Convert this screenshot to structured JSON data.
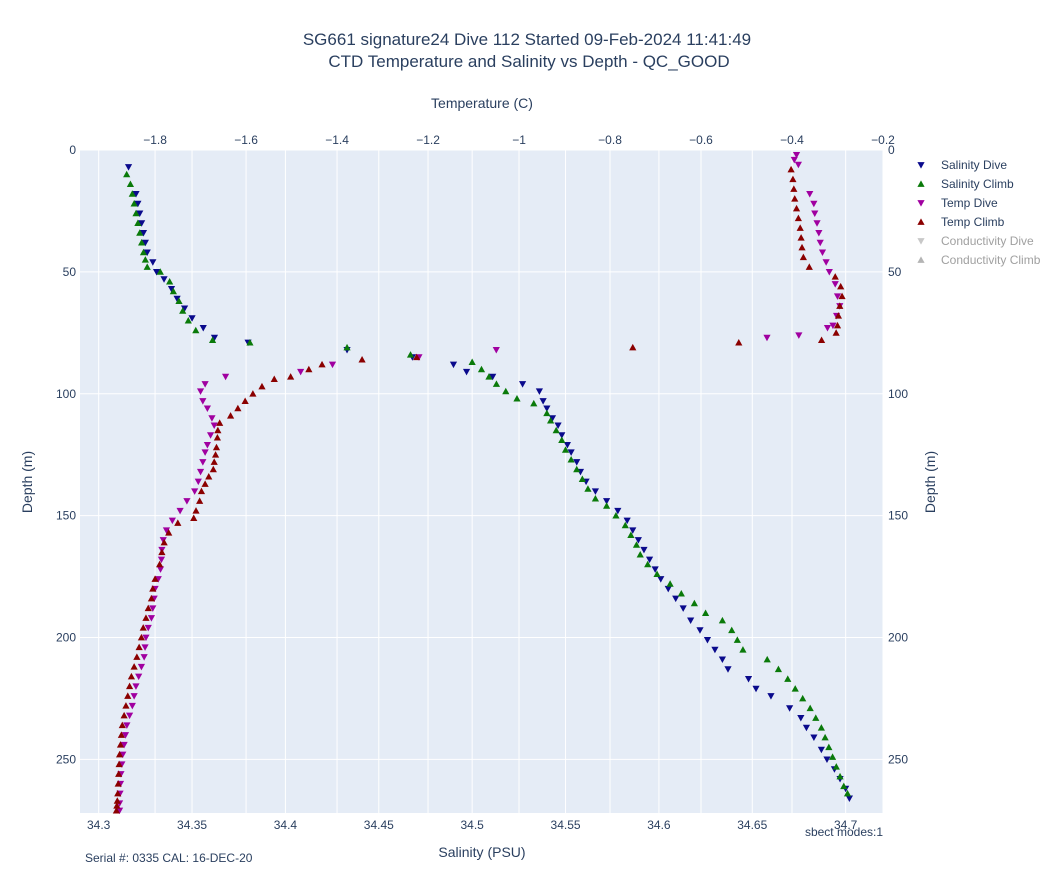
{
  "chart_data": {
    "type": "scatter",
    "title": "SG661 signature24 Dive 112 Started 09-Feb-2024 11:41:49",
    "subtitle": "CTD Temperature and Salinity vs Depth - QC_GOOD",
    "xlabel": "Salinity (PSU)",
    "x2label": "Temperature (C)",
    "ylabel": "Depth (m)",
    "y2label": "Depth (m)",
    "xlim": [
      34.29,
      34.72
    ],
    "x2lim": [
      -1.965,
      -0.2
    ],
    "ylim": [
      272,
      0
    ],
    "x_ticks": [
      "34.3",
      "34.35",
      "34.4",
      "34.45",
      "34.5",
      "34.55",
      "34.6",
      "34.65",
      "34.7"
    ],
    "x2_ticks": [
      "−1.8",
      "−1.6",
      "−1.4",
      "−1.2",
      "−1",
      "−0.8",
      "−0.6",
      "−0.4",
      "−0.2"
    ],
    "y_ticks": [
      "0",
      "50",
      "100",
      "150",
      "200",
      "250"
    ],
    "grid": true,
    "legend_position": "right",
    "annotation_left": "Serial #: 0335  CAL: 16-DEC-20",
    "annotation_right": "sbect modes:1",
    "series": [
      {
        "name": "Salinity Dive",
        "axis": "salinity",
        "marker": "down",
        "color": "#0a0a8c",
        "points": [
          [
            34.316,
            7
          ],
          [
            34.32,
            18
          ],
          [
            34.321,
            22
          ],
          [
            34.322,
            26
          ],
          [
            34.323,
            30
          ],
          [
            34.324,
            34
          ],
          [
            34.325,
            38
          ],
          [
            34.326,
            42
          ],
          [
            34.329,
            46
          ],
          [
            34.331,
            50
          ],
          [
            34.335,
            53
          ],
          [
            34.339,
            57
          ],
          [
            34.342,
            61
          ],
          [
            34.346,
            65
          ],
          [
            34.35,
            69
          ],
          [
            34.356,
            73
          ],
          [
            34.362,
            77
          ],
          [
            34.38,
            79
          ],
          [
            34.433,
            82
          ],
          [
            34.468,
            85
          ],
          [
            34.49,
            88
          ],
          [
            34.497,
            91
          ],
          [
            34.511,
            93
          ],
          [
            34.527,
            96
          ],
          [
            34.536,
            99
          ],
          [
            34.538,
            103
          ],
          [
            34.54,
            106
          ],
          [
            34.543,
            110
          ],
          [
            34.546,
            113
          ],
          [
            34.548,
            117
          ],
          [
            34.551,
            121
          ],
          [
            34.553,
            124
          ],
          [
            34.556,
            128
          ],
          [
            34.558,
            132
          ],
          [
            34.561,
            136
          ],
          [
            34.566,
            140
          ],
          [
            34.572,
            144
          ],
          [
            34.578,
            148
          ],
          [
            34.583,
            152
          ],
          [
            34.586,
            156
          ],
          [
            34.589,
            160
          ],
          [
            34.592,
            164
          ],
          [
            34.595,
            168
          ],
          [
            34.598,
            172
          ],
          [
            34.601,
            176
          ],
          [
            34.605,
            180
          ],
          [
            34.609,
            184
          ],
          [
            34.613,
            188
          ],
          [
            34.617,
            193
          ],
          [
            34.622,
            197
          ],
          [
            34.626,
            201
          ],
          [
            34.63,
            205
          ],
          [
            34.634,
            209
          ],
          [
            34.637,
            213
          ],
          [
            34.648,
            217
          ],
          [
            34.652,
            221
          ],
          [
            34.66,
            224
          ],
          [
            34.67,
            229
          ],
          [
            34.676,
            233
          ],
          [
            34.679,
            237
          ],
          [
            34.683,
            241
          ],
          [
            34.687,
            246
          ],
          [
            34.69,
            250
          ],
          [
            34.694,
            254
          ],
          [
            34.697,
            258
          ],
          [
            34.7,
            262
          ],
          [
            34.702,
            266
          ]
        ]
      },
      {
        "name": "Salinity Climb",
        "axis": "salinity",
        "marker": "up",
        "color": "#0a7a0a",
        "points": [
          [
            34.315,
            10
          ],
          [
            34.317,
            14
          ],
          [
            34.318,
            18
          ],
          [
            34.319,
            22
          ],
          [
            34.32,
            26
          ],
          [
            34.321,
            30
          ],
          [
            34.322,
            34
          ],
          [
            34.323,
            38
          ],
          [
            34.324,
            42
          ],
          [
            34.325,
            45
          ],
          [
            34.326,
            48
          ],
          [
            34.333,
            50
          ],
          [
            34.338,
            54
          ],
          [
            34.34,
            58
          ],
          [
            34.343,
            62
          ],
          [
            34.345,
            66
          ],
          [
            34.348,
            70
          ],
          [
            34.352,
            74
          ],
          [
            34.361,
            78
          ],
          [
            34.381,
            79
          ],
          [
            34.433,
            81
          ],
          [
            34.467,
            84
          ],
          [
            34.5,
            87
          ],
          [
            34.505,
            90
          ],
          [
            34.509,
            93
          ],
          [
            34.513,
            96
          ],
          [
            34.518,
            99
          ],
          [
            34.524,
            102
          ],
          [
            34.533,
            104
          ],
          [
            34.54,
            108
          ],
          [
            34.542,
            111
          ],
          [
            34.545,
            115
          ],
          [
            34.548,
            119
          ],
          [
            34.55,
            123
          ],
          [
            34.553,
            127
          ],
          [
            34.556,
            131
          ],
          [
            34.559,
            135
          ],
          [
            34.562,
            139
          ],
          [
            34.566,
            143
          ],
          [
            34.572,
            146
          ],
          [
            34.577,
            150
          ],
          [
            34.582,
            154
          ],
          [
            34.585,
            158
          ],
          [
            34.588,
            162
          ],
          [
            34.59,
            166
          ],
          [
            34.594,
            170
          ],
          [
            34.599,
            174
          ],
          [
            34.606,
            178
          ],
          [
            34.612,
            182
          ],
          [
            34.619,
            186
          ],
          [
            34.625,
            190
          ],
          [
            34.634,
            193
          ],
          [
            34.639,
            197
          ],
          [
            34.642,
            201
          ],
          [
            34.645,
            205
          ],
          [
            34.658,
            209
          ],
          [
            34.664,
            213
          ],
          [
            34.669,
            217
          ],
          [
            34.673,
            221
          ],
          [
            34.677,
            225
          ],
          [
            34.681,
            229
          ],
          [
            34.684,
            233
          ],
          [
            34.687,
            237
          ],
          [
            34.689,
            241
          ],
          [
            34.691,
            245
          ],
          [
            34.693,
            249
          ],
          [
            34.695,
            253
          ],
          [
            34.697,
            257
          ],
          [
            34.699,
            261
          ],
          [
            34.701,
            264
          ]
        ]
      },
      {
        "name": "Temp Dive",
        "axis": "temperature",
        "marker": "down",
        "color": "#a000a0",
        "points": [
          [
            -0.39,
            2
          ],
          [
            -0.395,
            4
          ],
          [
            -0.386,
            6
          ],
          [
            -0.361,
            18
          ],
          [
            -0.352,
            22
          ],
          [
            -0.35,
            26
          ],
          [
            -0.345,
            30
          ],
          [
            -0.341,
            34
          ],
          [
            -0.338,
            38
          ],
          [
            -0.333,
            42
          ],
          [
            -0.325,
            46
          ],
          [
            -0.318,
            50
          ],
          [
            -0.305,
            55
          ],
          [
            -0.3,
            60
          ],
          [
            -0.295,
            64
          ],
          [
            -0.302,
            68
          ],
          [
            -0.31,
            72
          ],
          [
            -0.322,
            73
          ],
          [
            -0.385,
            76
          ],
          [
            -0.455,
            77
          ],
          [
            -1.05,
            82
          ],
          [
            -1.22,
            85
          ],
          [
            -1.41,
            88
          ],
          [
            -1.48,
            91
          ],
          [
            -1.645,
            93
          ],
          [
            -1.69,
            96
          ],
          [
            -1.7,
            99
          ],
          [
            -1.695,
            103
          ],
          [
            -1.685,
            106
          ],
          [
            -1.675,
            110
          ],
          [
            -1.67,
            113
          ],
          [
            -1.678,
            117
          ],
          [
            -1.685,
            121
          ],
          [
            -1.69,
            124
          ],
          [
            -1.695,
            128
          ],
          [
            -1.7,
            132
          ],
          [
            -1.705,
            136
          ],
          [
            -1.713,
            140
          ],
          [
            -1.73,
            144
          ],
          [
            -1.745,
            148
          ],
          [
            -1.762,
            152
          ],
          [
            -1.775,
            156
          ],
          [
            -1.782,
            160
          ],
          [
            -1.785,
            164
          ],
          [
            -1.786,
            168
          ],
          [
            -1.788,
            172
          ],
          [
            -1.793,
            176
          ],
          [
            -1.8,
            180
          ],
          [
            -1.802,
            184
          ],
          [
            -1.805,
            188
          ],
          [
            -1.808,
            192
          ],
          [
            -1.815,
            196
          ],
          [
            -1.82,
            200
          ],
          [
            -1.822,
            204
          ],
          [
            -1.824,
            208
          ],
          [
            -1.83,
            212
          ],
          [
            -1.836,
            216
          ],
          [
            -1.842,
            220
          ],
          [
            -1.846,
            224
          ],
          [
            -1.85,
            228
          ],
          [
            -1.856,
            232
          ],
          [
            -1.862,
            236
          ],
          [
            -1.865,
            240
          ],
          [
            -1.868,
            244
          ],
          [
            -1.871,
            248
          ],
          [
            -1.873,
            252
          ],
          [
            -1.875,
            256
          ],
          [
            -1.876,
            260
          ],
          [
            -1.877,
            264
          ],
          [
            -1.878,
            268
          ],
          [
            -1.878,
            271
          ]
        ]
      },
      {
        "name": "Temp Climb",
        "axis": "temperature",
        "marker": "up",
        "color": "#8b0000",
        "points": [
          [
            -0.402,
            8
          ],
          [
            -0.398,
            12
          ],
          [
            -0.396,
            16
          ],
          [
            -0.394,
            20
          ],
          [
            -0.39,
            24
          ],
          [
            -0.386,
            28
          ],
          [
            -0.382,
            32
          ],
          [
            -0.38,
            36
          ],
          [
            -0.378,
            40
          ],
          [
            -0.375,
            44
          ],
          [
            -0.362,
            48
          ],
          [
            -0.305,
            52
          ],
          [
            -0.293,
            56
          ],
          [
            -0.29,
            60
          ],
          [
            -0.295,
            64
          ],
          [
            -0.298,
            68
          ],
          [
            -0.3,
            72
          ],
          [
            -0.303,
            75
          ],
          [
            -0.335,
            78
          ],
          [
            -0.517,
            79
          ],
          [
            -0.75,
            81
          ],
          [
            -1.225,
            85
          ],
          [
            -1.345,
            86
          ],
          [
            -1.433,
            88
          ],
          [
            -1.462,
            90
          ],
          [
            -1.502,
            93
          ],
          [
            -1.538,
            94
          ],
          [
            -1.565,
            97
          ],
          [
            -1.585,
            100
          ],
          [
            -1.602,
            103
          ],
          [
            -1.618,
            106
          ],
          [
            -1.634,
            109
          ],
          [
            -1.658,
            112
          ],
          [
            -1.662,
            115
          ],
          [
            -1.663,
            118
          ],
          [
            -1.665,
            122
          ],
          [
            -1.667,
            125
          ],
          [
            -1.67,
            128
          ],
          [
            -1.672,
            131
          ],
          [
            -1.682,
            134
          ],
          [
            -1.69,
            137
          ],
          [
            -1.698,
            140
          ],
          [
            -1.702,
            144
          ],
          [
            -1.71,
            148
          ],
          [
            -1.715,
            151
          ],
          [
            -1.75,
            153
          ],
          [
            -1.77,
            157
          ],
          [
            -1.78,
            161
          ],
          [
            -1.785,
            165
          ],
          [
            -1.79,
            170
          ],
          [
            -1.8,
            176
          ],
          [
            -1.805,
            180
          ],
          [
            -1.808,
            184
          ],
          [
            -1.815,
            188
          ],
          [
            -1.82,
            192
          ],
          [
            -1.826,
            196
          ],
          [
            -1.83,
            200
          ],
          [
            -1.835,
            204
          ],
          [
            -1.84,
            208
          ],
          [
            -1.846,
            212
          ],
          [
            -1.852,
            216
          ],
          [
            -1.856,
            220
          ],
          [
            -1.86,
            224
          ],
          [
            -1.864,
            228
          ],
          [
            -1.868,
            232
          ],
          [
            -1.872,
            236
          ],
          [
            -1.874,
            240
          ],
          [
            -1.876,
            244
          ],
          [
            -1.878,
            248
          ],
          [
            -1.879,
            252
          ],
          [
            -1.88,
            256
          ],
          [
            -1.881,
            260
          ],
          [
            -1.882,
            264
          ],
          [
            -1.883,
            267
          ],
          [
            -1.884,
            269
          ],
          [
            -1.885,
            271
          ]
        ]
      },
      {
        "name": "Conductivity Dive",
        "axis": "conductivity",
        "marker": "down",
        "color": "#c8c8c8",
        "visible": false,
        "points": []
      },
      {
        "name": "Conductivity Climb",
        "axis": "conductivity",
        "marker": "up",
        "color": "#b4b4b4",
        "visible": false,
        "points": []
      }
    ]
  }
}
